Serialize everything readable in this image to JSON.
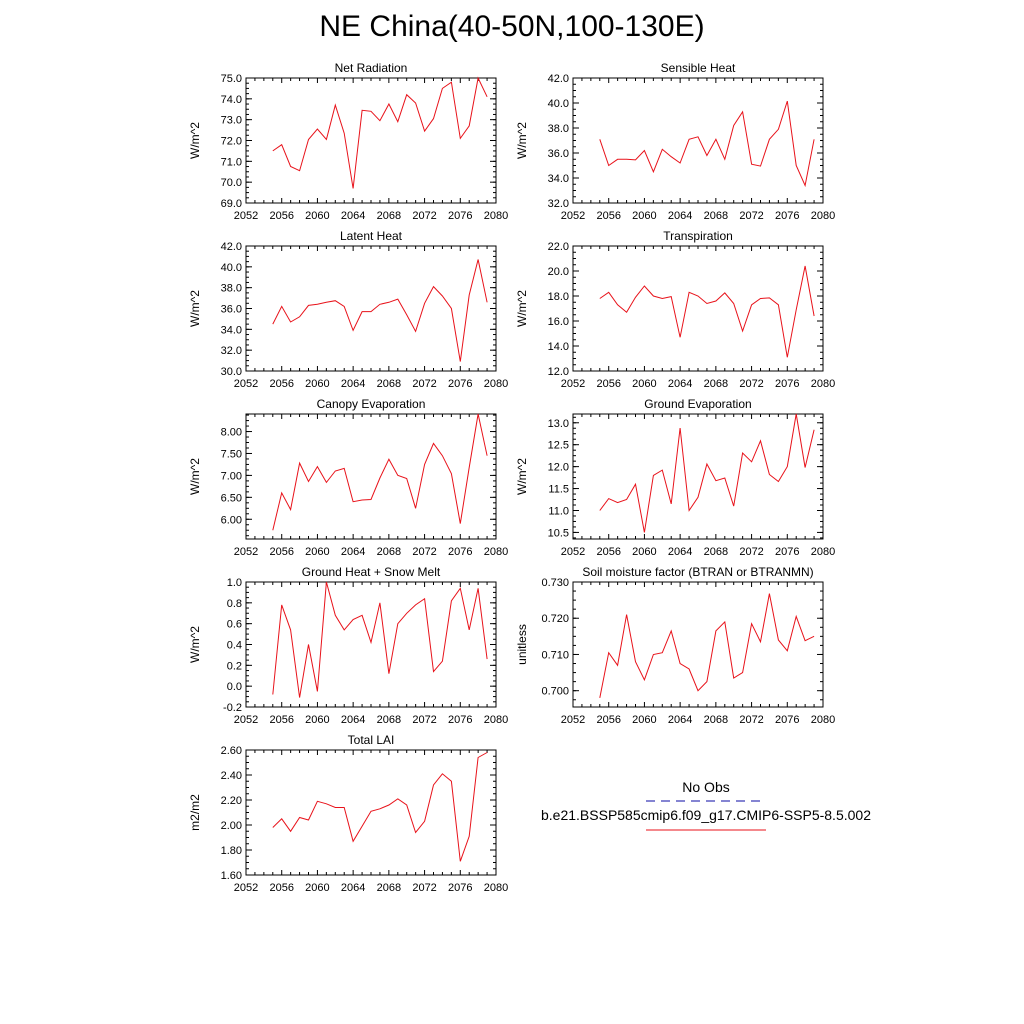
{
  "page_title": "NE China(40-50N,100-130E)",
  "colors": {
    "model": "#e8121a",
    "obs": "#3a3ab8",
    "axis": "#000000"
  },
  "legend": {
    "obs_label": "No Obs",
    "model_label": "b.e21.BSSP585cmip6.f09_g17.CMIP6-SSP5-8.5.002"
  },
  "chart_data": [
    {
      "type": "line",
      "title": "Net Radiation",
      "ylabel": "W/m^2",
      "xlim": [
        2052,
        2080
      ],
      "xticks": [
        "2052",
        "2056",
        "2060",
        "2064",
        "2068",
        "2072",
        "2076",
        "2080"
      ],
      "ylim": [
        69.0,
        75.0
      ],
      "yticks": [
        "69.0",
        "70.0",
        "71.0",
        "72.0",
        "73.0",
        "74.0",
        "75.0"
      ],
      "x": [
        2055,
        2056,
        2057,
        2058,
        2059,
        2060,
        2061,
        2062,
        2063,
        2064,
        2065,
        2066,
        2067,
        2068,
        2069,
        2070,
        2071,
        2072,
        2073,
        2074,
        2075,
        2076,
        2077,
        2078,
        2079
      ],
      "values": [
        71.5,
        71.8,
        70.75,
        70.55,
        72.05,
        72.55,
        72.05,
        73.7,
        72.35,
        69.7,
        73.45,
        73.4,
        72.95,
        73.75,
        72.9,
        74.2,
        73.8,
        72.45,
        73.05,
        74.5,
        74.8,
        72.1,
        72.7,
        75.0,
        74.1
      ]
    },
    {
      "type": "line",
      "title": "Sensible Heat",
      "ylabel": "W/m^2",
      "xlim": [
        2052,
        2080
      ],
      "xticks": [
        "2052",
        "2056",
        "2060",
        "2064",
        "2068",
        "2072",
        "2076",
        "2080"
      ],
      "ylim": [
        32.0,
        42.0
      ],
      "yticks": [
        "32.0",
        "34.0",
        "36.0",
        "38.0",
        "40.0",
        "42.0"
      ],
      "x": [
        2055,
        2056,
        2057,
        2058,
        2059,
        2060,
        2061,
        2062,
        2063,
        2064,
        2065,
        2066,
        2067,
        2068,
        2069,
        2070,
        2071,
        2072,
        2073,
        2074,
        2075,
        2076,
        2077,
        2078,
        2079
      ],
      "values": [
        37.1,
        35.0,
        35.5,
        35.5,
        35.45,
        36.2,
        34.5,
        36.3,
        35.7,
        35.2,
        37.1,
        37.3,
        35.8,
        37.1,
        35.5,
        38.2,
        39.3,
        35.1,
        34.95,
        37.1,
        37.9,
        40.15,
        35.0,
        33.4,
        37.1
      ]
    },
    {
      "type": "line",
      "title": "Latent Heat",
      "ylabel": "W/m^2",
      "xlim": [
        2052,
        2080
      ],
      "xticks": [
        "2052",
        "2056",
        "2060",
        "2064",
        "2068",
        "2072",
        "2076",
        "2080"
      ],
      "ylim": [
        30.0,
        42.0
      ],
      "yticks": [
        "30.0",
        "32.0",
        "34.0",
        "36.0",
        "38.0",
        "40.0",
        "42.0"
      ],
      "x": [
        2055,
        2056,
        2057,
        2058,
        2059,
        2060,
        2061,
        2062,
        2063,
        2064,
        2065,
        2066,
        2067,
        2068,
        2069,
        2070,
        2071,
        2072,
        2073,
        2074,
        2075,
        2076,
        2077,
        2078,
        2079
      ],
      "values": [
        34.5,
        36.2,
        34.7,
        35.2,
        36.3,
        36.4,
        36.6,
        36.75,
        36.2,
        33.9,
        35.7,
        35.7,
        36.4,
        36.6,
        36.9,
        35.4,
        33.8,
        36.5,
        38.1,
        37.2,
        36.0,
        30.9,
        37.3,
        40.7,
        36.6
      ]
    },
    {
      "type": "line",
      "title": "Transpiration",
      "ylabel": "W/m^2",
      "xlim": [
        2052,
        2080
      ],
      "xticks": [
        "2052",
        "2056",
        "2060",
        "2064",
        "2068",
        "2072",
        "2076",
        "2080"
      ],
      "ylim": [
        12.0,
        22.0
      ],
      "yticks": [
        "12.0",
        "14.0",
        "16.0",
        "18.0",
        "20.0",
        "22.0"
      ],
      "x": [
        2055,
        2056,
        2057,
        2058,
        2059,
        2060,
        2061,
        2062,
        2063,
        2064,
        2065,
        2066,
        2067,
        2068,
        2069,
        2070,
        2071,
        2072,
        2073,
        2074,
        2075,
        2076,
        2077,
        2078,
        2079
      ],
      "values": [
        17.8,
        18.3,
        17.3,
        16.7,
        17.9,
        18.8,
        18.0,
        17.8,
        17.95,
        14.7,
        18.3,
        18.0,
        17.4,
        17.6,
        18.25,
        17.4,
        15.2,
        17.3,
        17.8,
        17.85,
        17.3,
        13.1,
        16.9,
        20.4,
        16.4
      ]
    },
    {
      "type": "line",
      "title": "Canopy Evaporation",
      "ylabel": "W/m^2",
      "xlim": [
        2052,
        2080
      ],
      "xticks": [
        "2052",
        "2056",
        "2060",
        "2064",
        "2068",
        "2072",
        "2076",
        "2080"
      ],
      "ylim": [
        5.55,
        8.4
      ],
      "yticks": [
        "6.00",
        "6.50",
        "7.00",
        "7.50",
        "8.00"
      ],
      "ytick_values": [
        6.0,
        6.5,
        7.0,
        7.5,
        8.0
      ],
      "x": [
        2055,
        2056,
        2057,
        2058,
        2059,
        2060,
        2061,
        2062,
        2063,
        2064,
        2065,
        2066,
        2067,
        2068,
        2069,
        2070,
        2071,
        2072,
        2073,
        2074,
        2075,
        2076,
        2077,
        2078,
        2079
      ],
      "values": [
        5.75,
        6.6,
        6.22,
        7.28,
        6.86,
        7.2,
        6.84,
        7.1,
        7.16,
        6.4,
        6.44,
        6.45,
        6.94,
        7.37,
        7.0,
        6.93,
        6.25,
        7.25,
        7.73,
        7.45,
        7.04,
        5.9,
        7.18,
        8.4,
        7.45
      ]
    },
    {
      "type": "line",
      "title": "Ground Evaporation",
      "ylabel": "W/m^2",
      "xlim": [
        2052,
        2080
      ],
      "xticks": [
        "2052",
        "2056",
        "2060",
        "2064",
        "2068",
        "2072",
        "2076",
        "2080"
      ],
      "ylim": [
        10.35,
        13.2
      ],
      "yticks": [
        "10.5",
        "11.0",
        "11.5",
        "12.0",
        "12.5",
        "13.0"
      ],
      "ytick_values": [
        10.5,
        11.0,
        11.5,
        12.0,
        12.5,
        13.0
      ],
      "x": [
        2055,
        2056,
        2057,
        2058,
        2059,
        2060,
        2061,
        2062,
        2063,
        2064,
        2065,
        2066,
        2067,
        2068,
        2069,
        2070,
        2071,
        2072,
        2073,
        2074,
        2075,
        2076,
        2077,
        2078,
        2079
      ],
      "values": [
        11.0,
        11.27,
        11.18,
        11.25,
        11.6,
        10.5,
        11.8,
        11.92,
        11.15,
        12.88,
        11.0,
        11.3,
        12.06,
        11.68,
        11.74,
        11.1,
        12.31,
        12.11,
        12.59,
        11.82,
        11.66,
        12.0,
        13.2,
        11.98,
        12.84
      ]
    },
    {
      "type": "line",
      "title": "Ground Heat + Snow Melt",
      "ylabel": "W/m^2",
      "xlim": [
        2052,
        2080
      ],
      "xticks": [
        "2052",
        "2056",
        "2060",
        "2064",
        "2068",
        "2072",
        "2076",
        "2080"
      ],
      "ylim": [
        -0.2,
        1.0
      ],
      "yticks": [
        "-0.2",
        "0.0",
        "0.2",
        "0.4",
        "0.6",
        "0.8",
        "1.0"
      ],
      "x": [
        2055,
        2056,
        2057,
        2058,
        2059,
        2060,
        2061,
        2062,
        2063,
        2064,
        2065,
        2066,
        2067,
        2068,
        2069,
        2070,
        2071,
        2072,
        2073,
        2074,
        2075,
        2076,
        2077,
        2078,
        2079
      ],
      "values": [
        -0.08,
        0.78,
        0.54,
        -0.11,
        0.4,
        -0.05,
        1.0,
        0.68,
        0.54,
        0.64,
        0.68,
        0.42,
        0.8,
        0.12,
        0.6,
        0.7,
        0.78,
        0.84,
        0.14,
        0.24,
        0.82,
        0.94,
        0.54,
        0.94,
        0.26
      ]
    },
    {
      "type": "line",
      "title": "Soil moisture factor (BTRAN or BTRANMN)",
      "ylabel": "unitless",
      "xlim": [
        2052,
        2080
      ],
      "xticks": [
        "2052",
        "2056",
        "2060",
        "2064",
        "2068",
        "2072",
        "2076",
        "2080"
      ],
      "ylim": [
        0.6955,
        0.73
      ],
      "yticks": [
        "0.700",
        "0.710",
        "0.720",
        "0.730"
      ],
      "ytick_values": [
        0.7,
        0.71,
        0.72,
        0.73
      ],
      "x": [
        2055,
        2056,
        2057,
        2058,
        2059,
        2060,
        2061,
        2062,
        2063,
        2064,
        2065,
        2066,
        2067,
        2068,
        2069,
        2070,
        2071,
        2072,
        2073,
        2074,
        2075,
        2076,
        2077,
        2078,
        2079
      ],
      "values": [
        0.698,
        0.7105,
        0.707,
        0.721,
        0.708,
        0.703,
        0.71,
        0.7105,
        0.7165,
        0.7075,
        0.706,
        0.7,
        0.7025,
        0.7165,
        0.719,
        0.7035,
        0.705,
        0.7185,
        0.7135,
        0.7268,
        0.714,
        0.711,
        0.7205,
        0.7138,
        0.715
      ]
    },
    {
      "type": "line",
      "title": "Total LAI",
      "ylabel": "m2/m2",
      "xlim": [
        2052,
        2080
      ],
      "xticks": [
        "2052",
        "2056",
        "2060",
        "2064",
        "2068",
        "2072",
        "2076",
        "2080"
      ],
      "ylim": [
        1.6,
        2.6
      ],
      "yticks": [
        "1.60",
        "1.80",
        "2.00",
        "2.20",
        "2.40",
        "2.60"
      ],
      "ytick_values": [
        1.6,
        1.8,
        2.0,
        2.2,
        2.4,
        2.6
      ],
      "x": [
        2055,
        2056,
        2057,
        2058,
        2059,
        2060,
        2061,
        2062,
        2063,
        2064,
        2065,
        2066,
        2067,
        2068,
        2069,
        2070,
        2071,
        2072,
        2073,
        2074,
        2075,
        2076,
        2077,
        2078,
        2079
      ],
      "values": [
        1.98,
        2.05,
        1.95,
        2.06,
        2.04,
        2.19,
        2.17,
        2.14,
        2.14,
        1.87,
        1.99,
        2.11,
        2.13,
        2.16,
        2.21,
        2.16,
        1.94,
        2.03,
        2.32,
        2.41,
        2.35,
        1.71,
        1.91,
        2.54,
        2.58
      ]
    }
  ]
}
